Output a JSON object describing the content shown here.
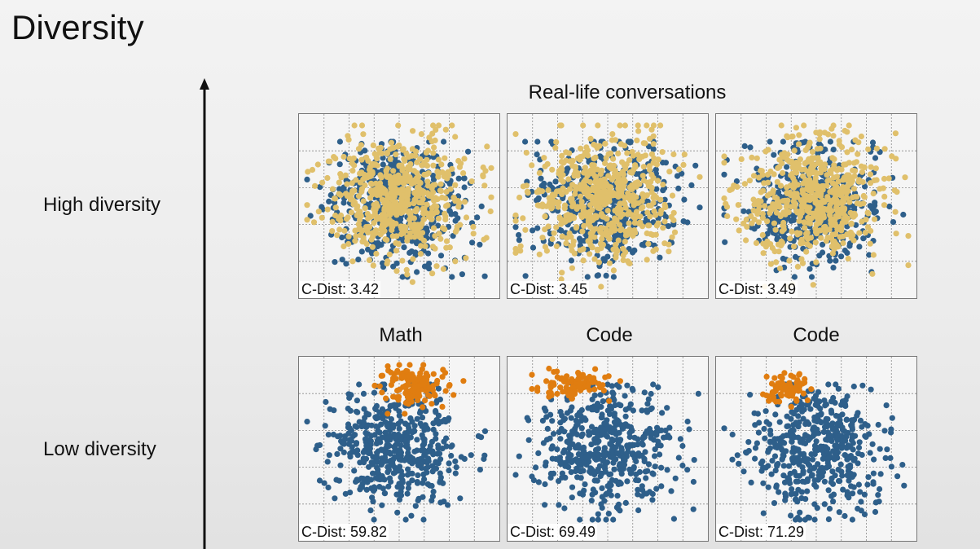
{
  "slide": {
    "title": "Diversity",
    "axis_labels": {
      "high": "High diversity",
      "low": "Low diversity"
    },
    "row_titles": {
      "top": "Real-life conversations",
      "bottom": [
        "Math",
        "Code",
        "Code"
      ]
    }
  },
  "colors": {
    "blue": "#2e5f8a",
    "gold": "#e0c06b",
    "orange": "#e07d10",
    "grid": "#8a8a8a"
  },
  "chart_data": [
    {
      "type": "scatter",
      "panel": "top-1",
      "label": "C-Dist: 3.42",
      "value": 3.42,
      "series": [
        {
          "color_key": "blue",
          "role": "base"
        },
        {
          "color_key": "gold",
          "role": "overlay-spread"
        }
      ]
    },
    {
      "type": "scatter",
      "panel": "top-2",
      "label": "C-Dist: 3.45",
      "value": 3.45,
      "series": [
        {
          "color_key": "blue",
          "role": "base"
        },
        {
          "color_key": "gold",
          "role": "overlay-spread"
        }
      ]
    },
    {
      "type": "scatter",
      "panel": "top-3",
      "label": "C-Dist: 3.49",
      "value": 3.49,
      "series": [
        {
          "color_key": "blue",
          "role": "base"
        },
        {
          "color_key": "gold",
          "role": "overlay-spread"
        }
      ]
    },
    {
      "type": "scatter",
      "panel": "bottom-1",
      "title": "Math",
      "label": "C-Dist: 59.82",
      "value": 59.82,
      "series": [
        {
          "color_key": "blue",
          "role": "base"
        },
        {
          "color_key": "orange",
          "role": "overlay-cluster"
        }
      ]
    },
    {
      "type": "scatter",
      "panel": "bottom-2",
      "title": "Code",
      "label": "C-Dist: 69.49",
      "value": 69.49,
      "series": [
        {
          "color_key": "blue",
          "role": "base"
        },
        {
          "color_key": "orange",
          "role": "overlay-cluster"
        }
      ]
    },
    {
      "type": "scatter",
      "panel": "bottom-3",
      "title": "Code",
      "label": "C-Dist: 71.29",
      "value": 71.29,
      "series": [
        {
          "color_key": "blue",
          "role": "base"
        },
        {
          "color_key": "orange",
          "role": "overlay-cluster"
        }
      ]
    }
  ]
}
